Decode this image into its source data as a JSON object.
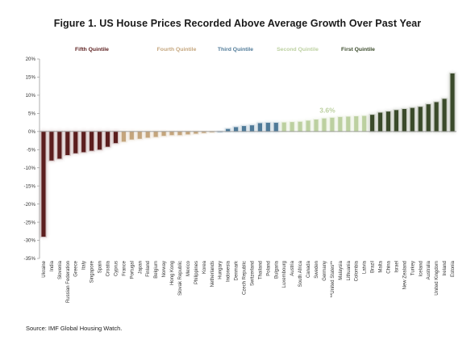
{
  "title": "Figure 1. US House Prices Recorded Above Average Growth Over Past Year",
  "source": "Source: IMF Global Housing Watch.",
  "colors": {
    "fifth": "#5c1e1e",
    "fourth": "#c4a57c",
    "third": "#4f7a98",
    "second": "#bcd0a0",
    "first": "#3a4a2a",
    "axis": "#9a9a9a",
    "annotation": "#bcd0a0"
  },
  "chart_data": {
    "type": "bar",
    "title": "Figure 1. US House Prices Recorded Above Average Growth Over Past Year",
    "xlabel": "",
    "ylabel": "",
    "ylim": [
      -35,
      20
    ],
    "yticks": [
      -35,
      -30,
      -25,
      -20,
      -15,
      -10,
      -5,
      0,
      5,
      10,
      15,
      20
    ],
    "ytick_labels": [
      "-35%",
      "-30%",
      "-25%",
      "-20%",
      "-15%",
      "-10%",
      "-5%",
      "0%",
      "5%",
      "10%",
      "15%",
      "20%"
    ],
    "grid": false,
    "legend_position": "top",
    "legend": [
      {
        "name": "Fifth Quintile",
        "quintile": "fifth"
      },
      {
        "name": "Fourth Quintile",
        "quintile": "fourth"
      },
      {
        "name": "Third Quintile",
        "quintile": "third"
      },
      {
        "name": "Second Quintile",
        "quintile": "second"
      },
      {
        "name": "First Quintile",
        "quintile": "first"
      }
    ],
    "annotation": {
      "text": "3.6%",
      "category": "Germany"
    },
    "categories": [
      "Ukraine",
      "India",
      "Slovenia",
      "Russian Federation",
      "Greece",
      "Italy",
      "Singapore",
      "Spain",
      "Croatia",
      "Cyprus",
      "France",
      "Portugal",
      "Japan",
      "Finland",
      "Belgium",
      "Norway",
      "Hong Kong",
      "Slovak Republic",
      "Mexico",
      "Philippines",
      "Korea",
      "Netherlands",
      "Hungary",
      "Indonesia",
      "Denmark",
      "Czech Republic",
      "Switzerland",
      "Thailand",
      "Poland",
      "Bulgaria",
      "Luxembourg",
      "Austria",
      "South Africa",
      "Canada",
      "Sweden",
      "Germany",
      "**United States**",
      "Malaysia",
      "Lithuania",
      "Colombia",
      "Latvia",
      "Brazil",
      "Malta",
      "China",
      "Israel",
      "New Zealand",
      "Turkey",
      "Iceland",
      "Australia",
      "United Kingdom",
      "Ireland",
      "Estonia"
    ],
    "values": [
      -29,
      -8,
      -7.5,
      -6.5,
      -6,
      -5.7,
      -5.3,
      -5,
      -4.2,
      -3.2,
      -2.8,
      -2.2,
      -2,
      -1.7,
      -1.5,
      -1.2,
      -1,
      -1,
      -0.8,
      -0.6,
      -0.4,
      -0.2,
      0,
      0.7,
      1.2,
      1.5,
      1.7,
      2.3,
      2.4,
      2.4,
      2.5,
      2.6,
      2.7,
      3,
      3.3,
      3.6,
      3.8,
      4,
      4.1,
      4.2,
      4.3,
      4.6,
      5.2,
      5.5,
      5.9,
      6.2,
      6.5,
      6.8,
      7.5,
      8.1,
      9,
      16
    ],
    "quintiles": [
      "fifth",
      "fifth",
      "fifth",
      "fifth",
      "fifth",
      "fifth",
      "fifth",
      "fifth",
      "fifth",
      "fifth",
      "fourth",
      "fourth",
      "fourth",
      "fourth",
      "fourth",
      "fourth",
      "fourth",
      "fourth",
      "fourth",
      "fourth",
      "fourth",
      "fourth",
      "third",
      "third",
      "third",
      "third",
      "third",
      "third",
      "third",
      "third",
      "second",
      "second",
      "second",
      "second",
      "second",
      "second",
      "second",
      "second",
      "second",
      "second",
      "second",
      "first",
      "first",
      "first",
      "first",
      "first",
      "first",
      "first",
      "first",
      "first",
      "first",
      "first"
    ]
  }
}
